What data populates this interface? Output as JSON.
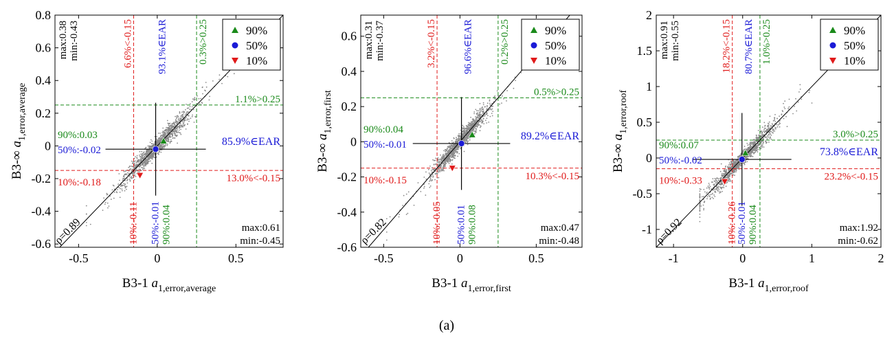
{
  "figure_label": "(a)",
  "chart_data": [
    {
      "type": "scatter",
      "xlabel": {
        "prefix": "B3-1 ",
        "main": "a",
        "sub": "1,error,average"
      },
      "ylabel": {
        "prefix": "B3-∞ ",
        "main": "a",
        "sub": "1,error,average"
      },
      "xlim": [
        -0.65,
        0.8
      ],
      "ylim": [
        -0.62,
        0.8
      ],
      "xticks": [
        -0.5,
        0,
        0.5
      ],
      "xtick_labels": [
        "-0.5",
        "0",
        "0.5"
      ],
      "yticks": [
        -0.6,
        -0.4,
        -0.2,
        0,
        0.2,
        0.4,
        0.6,
        0.8
      ],
      "ytick_labels": [
        "-0.6",
        "-0.4",
        "-0.2",
        "0",
        "0.2",
        "0.4",
        "0.6",
        "0.8"
      ],
      "thresholds": [
        -0.15,
        0.25
      ],
      "points": {
        "p90": [
          0.04,
          0.03
        ],
        "p50": [
          -0.01,
          -0.02
        ],
        "p10": [
          -0.11,
          -0.18
        ]
      },
      "cross_center": [
        -0.01,
        -0.02
      ],
      "legend": [
        "90%",
        "50%",
        "10%"
      ],
      "legend_position": "top-right",
      "rho_label": "ρ=0.89",
      "labels": {
        "topleft_max": "max:0.38",
        "topleft_min": "min:-0.43",
        "v_red": "6.6%<-0.15",
        "v_blue": "93.1%∈EAR",
        "v_green": "0.3%>0.25",
        "h_green": "1.1%>0.25",
        "h_blue": "85.9%∈EAR",
        "h_red": "13.0%<-0.15",
        "left90": "90%:0.03",
        "left50": "50%:-0.02",
        "left10": "10%:-0.18",
        "bot10": "10%:-0.11",
        "bot50": "50%:-0.01",
        "bot90": "90%:0.04",
        "br_max": "max:0.61",
        "br_min": "min:-0.45"
      },
      "scatter_description": {
        "slope": 1.0,
        "spread": 0.05,
        "x_range": [
          -0.45,
          0.61
        ]
      }
    },
    {
      "type": "scatter",
      "xlabel": {
        "prefix": "B3-1 ",
        "main": "a",
        "sub": "1,error,first"
      },
      "ylabel": {
        "prefix": "B3-∞ ",
        "main": "a",
        "sub": "1,error,first"
      },
      "xlim": [
        -0.65,
        0.8
      ],
      "ylim": [
        -0.6,
        0.72
      ],
      "xticks": [
        -0.5,
        0,
        0.5
      ],
      "xtick_labels": [
        "-0.5",
        "0",
        "0.5"
      ],
      "yticks": [
        -0.6,
        -0.4,
        -0.2,
        0,
        0.2,
        0.4,
        0.6
      ],
      "ytick_labels": [
        "-0.6",
        "-0.4",
        "-0.2",
        "0",
        "0.2",
        "0.4",
        "0.6"
      ],
      "thresholds": [
        -0.15,
        0.25
      ],
      "points": {
        "p90": [
          0.08,
          0.04
        ],
        "p50": [
          0.01,
          -0.01
        ],
        "p10": [
          -0.05,
          -0.15
        ]
      },
      "cross_center": [
        0.01,
        -0.01
      ],
      "legend": [
        "90%",
        "50%",
        "10%"
      ],
      "legend_position": "top-right",
      "rho_label": "ρ=0.82",
      "labels": {
        "topleft_max": "max:0.31",
        "topleft_min": "min:-0.37",
        "v_red": "3.2%<-0.15",
        "v_blue": "96.6%∈EAR",
        "v_green": "0.2%>0.25",
        "h_green": "0.5%>0.25",
        "h_blue": "89.2%∈EAR",
        "h_red": "10.3%<-0.15",
        "left90": "90%:0.04",
        "left50": "50%:-0.01",
        "left10": "10%:-0.15",
        "bot10": "10%:-0.05",
        "bot50": "50%:0.01",
        "bot90": "90%:0.08",
        "br_max": "max:0.47",
        "br_min": "min:-0.48"
      },
      "scatter_description": {
        "slope": 1.0,
        "spread": 0.045,
        "x_range": [
          -0.48,
          0.47
        ]
      }
    },
    {
      "type": "scatter",
      "xlabel": {
        "prefix": "B3-1 ",
        "main": "a",
        "sub": "1,error,roof"
      },
      "ylabel": {
        "prefix": "B3-∞ ",
        "main": "a",
        "sub": "1,error,roof"
      },
      "xlim": [
        -1.25,
        2.0
      ],
      "ylim": [
        -1.25,
        2.0
      ],
      "xticks": [
        -1,
        0,
        1,
        2
      ],
      "xtick_labels": [
        "-1",
        "0",
        "1",
        "2"
      ],
      "yticks": [
        -1,
        -0.5,
        0,
        0.5,
        1,
        1.5,
        2
      ],
      "ytick_labels": [
        "-1",
        "-0.5",
        "0",
        "0.5",
        "1",
        "1.5",
        "2"
      ],
      "thresholds": [
        -0.15,
        0.25
      ],
      "points": {
        "p90": [
          0.04,
          0.07
        ],
        "p50": [
          -0.01,
          -0.02
        ],
        "p10": [
          -0.26,
          -0.33
        ]
      },
      "cross_center": [
        -0.01,
        -0.02
      ],
      "legend": [
        "90%",
        "50%",
        "10%"
      ],
      "legend_position": "top-right",
      "rho_label": "ρ=0.92",
      "labels": {
        "topleft_max": "max:0.91",
        "topleft_min": "min:-0.55",
        "v_red": "18.2%<-0.15",
        "v_blue": "80.7%∈EAR",
        "v_green": "1.0%>0.25",
        "h_green": "3.0%>0.25",
        "h_blue": "73.8%∈EAR",
        "h_red": "23.2%<-0.15",
        "left90": "90%:0.07",
        "left50": "50%:-0.02",
        "left10": "10%:-0.33",
        "bot10": "10%:-0.26",
        "bot50": "50%:-0.01",
        "bot90": "90%:0.04",
        "br_max": "max:1.92",
        "br_min": "min:-0.62"
      },
      "scatter_description": {
        "slope": 1.0,
        "spread": 0.08,
        "x_range": [
          -0.62,
          1.92
        ]
      }
    }
  ]
}
